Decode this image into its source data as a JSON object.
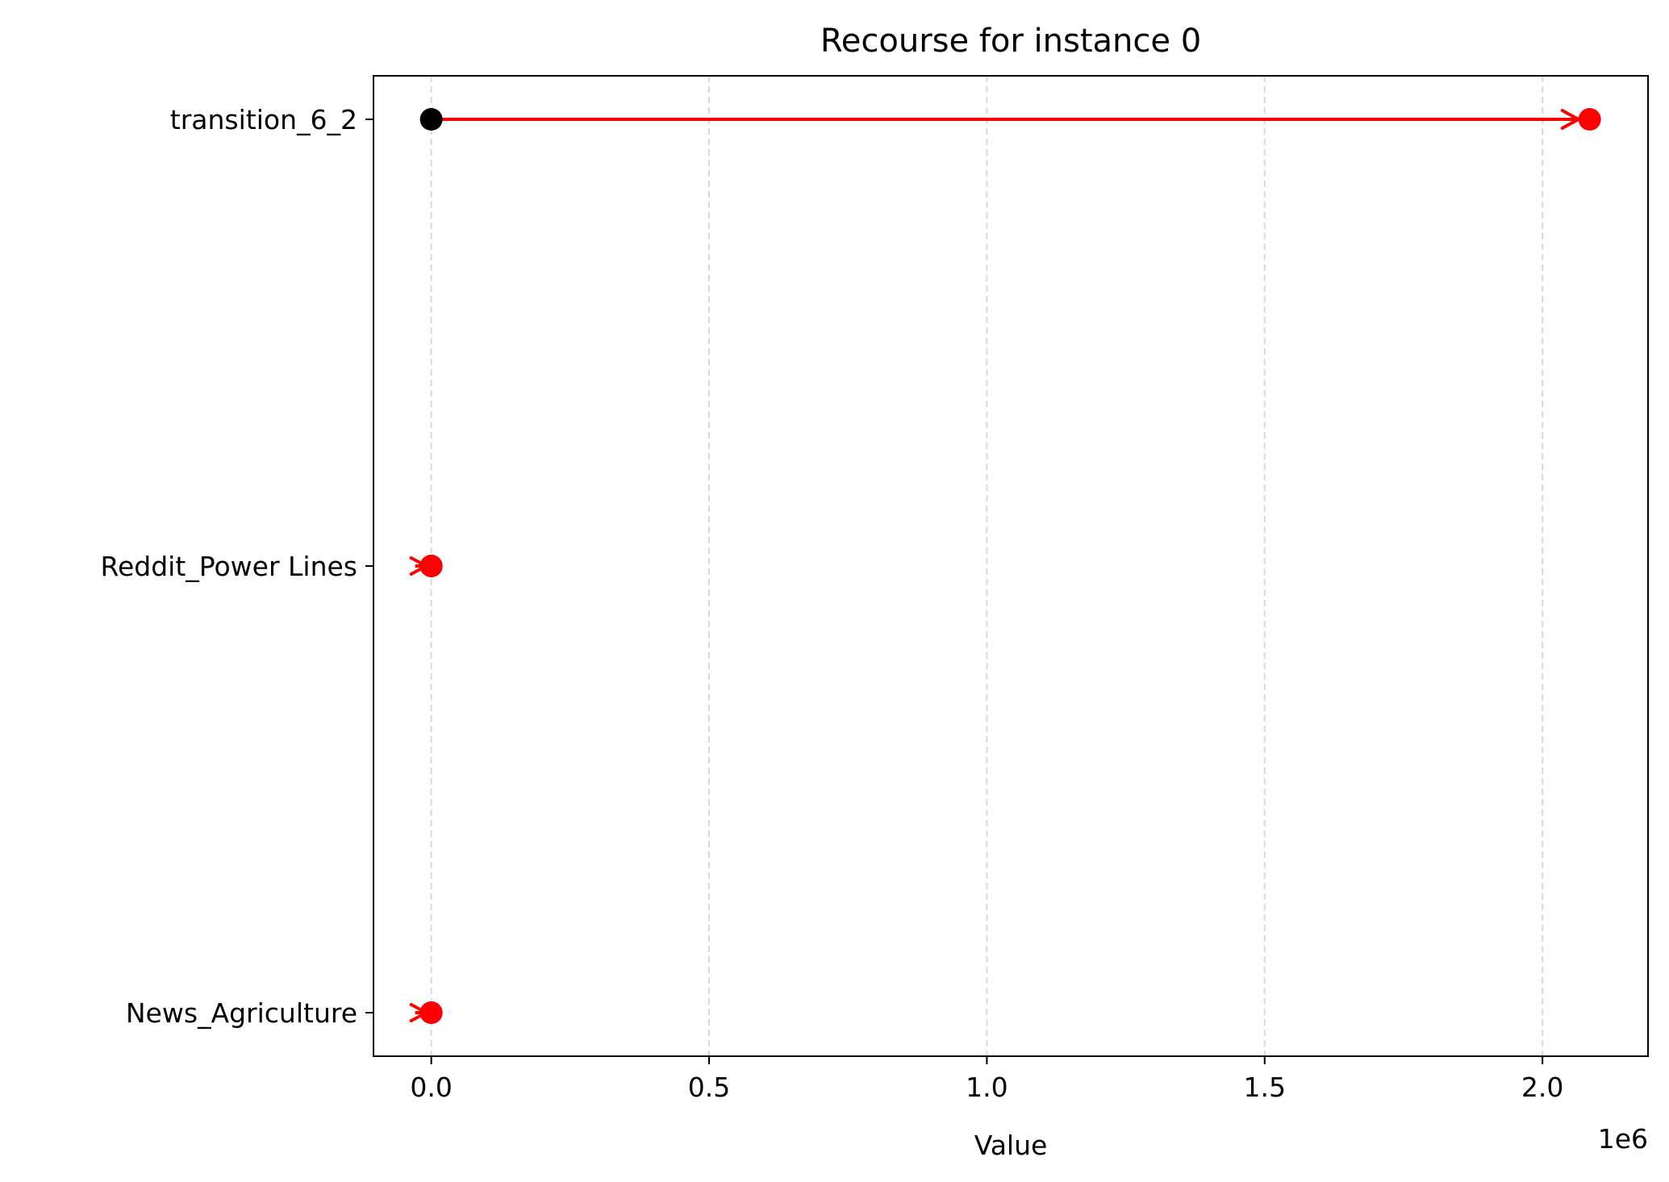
{
  "chart_data": {
    "type": "scatter",
    "title": "Recourse for instance 0",
    "xlabel": "Value",
    "ylabel": "",
    "x_offset_label": "1e6",
    "x_scale_factor": 1000000,
    "xlim": [
      -0.104,
      2.19
    ],
    "xticks": [
      0.0,
      0.5,
      1.0,
      1.5,
      2.0
    ],
    "xtick_labels": [
      "0.0",
      "0.5",
      "1.0",
      "1.5",
      "2.0"
    ],
    "grid": "x-dashed",
    "categories": [
      "transition_6_2",
      "Reddit_Power Lines",
      "News_Agriculture"
    ],
    "features": [
      {
        "name": "transition_6_2",
        "original": 0.0,
        "counterfactual": 2.085
      },
      {
        "name": "Reddit_Power Lines",
        "original": 0.0,
        "counterfactual": 0.0
      },
      {
        "name": "News_Agriculture",
        "original": 0.0,
        "counterfactual": 0.0
      }
    ],
    "colors": {
      "original": "#000000",
      "counterfactual": "#ff0000",
      "arrow": "#ff0000",
      "grid": "#d9d9d9"
    }
  }
}
